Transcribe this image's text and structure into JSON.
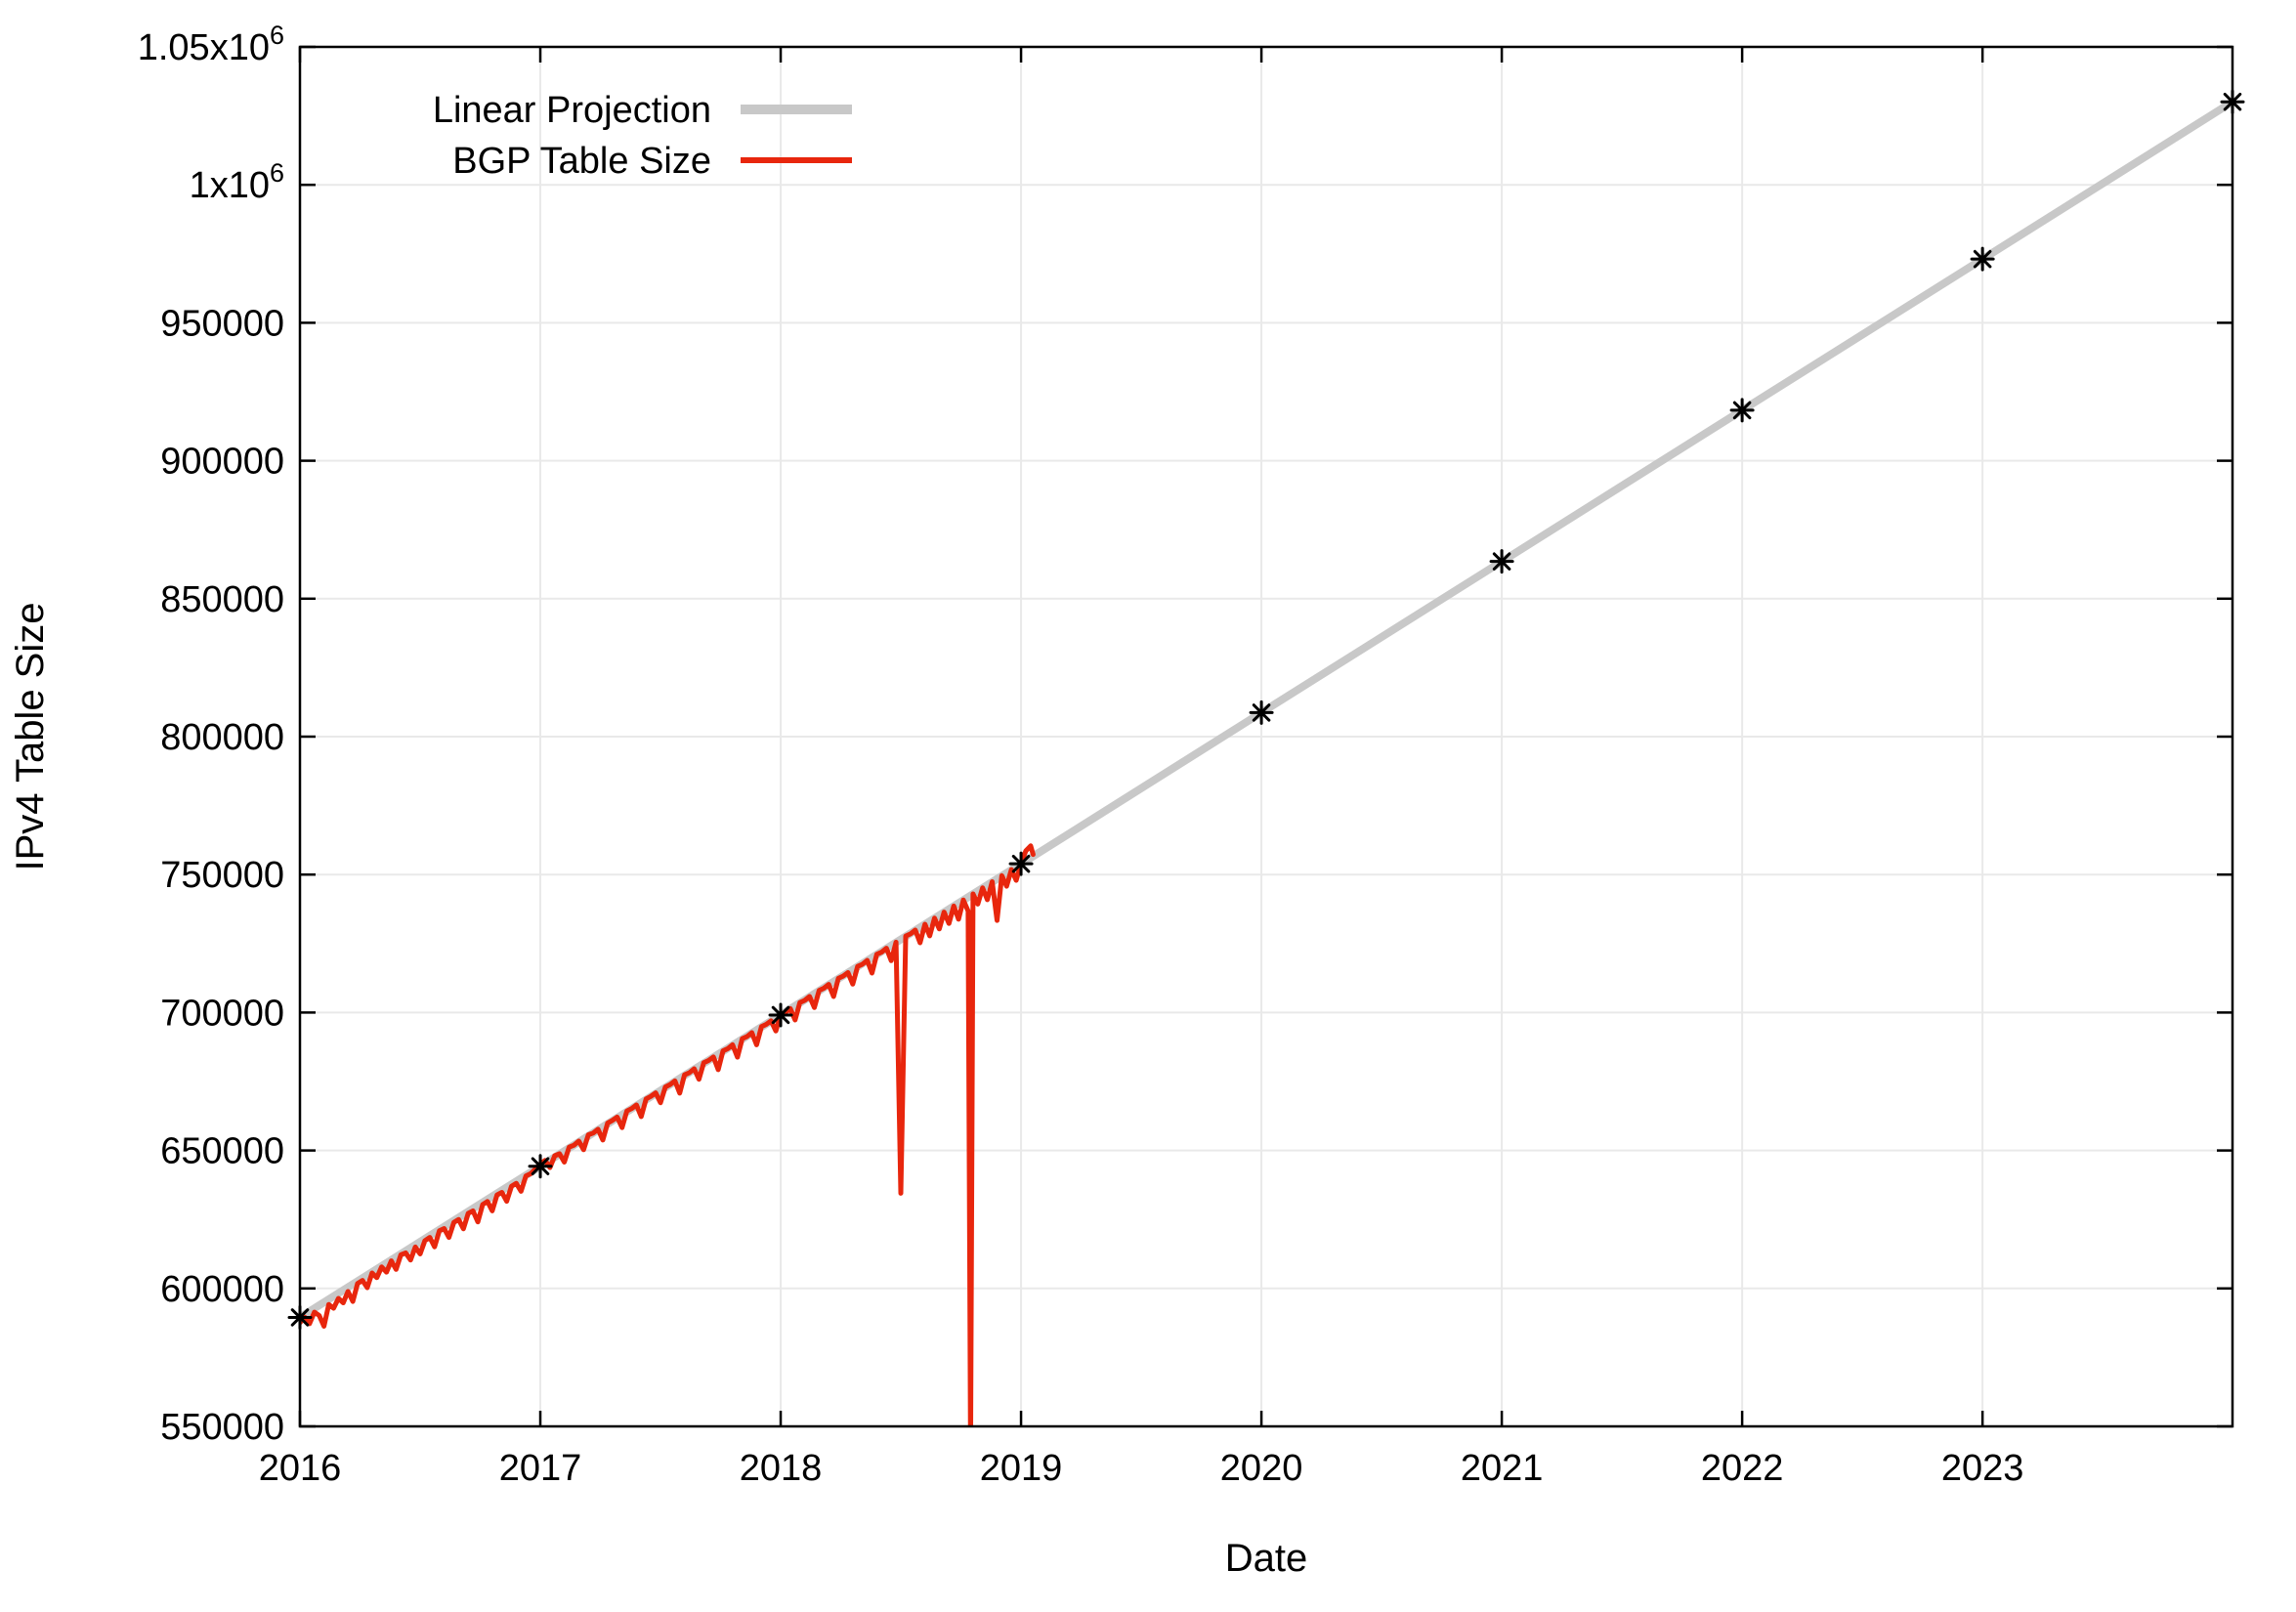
{
  "chart_data": {
    "type": "line",
    "title": "",
    "xlabel": "Date",
    "ylabel": "IPv4 Table Size",
    "xlim": [
      2016,
      2024.04
    ],
    "ylim": [
      550000,
      1050000
    ],
    "grid": true,
    "colors": {
      "projection_line": "#c8c8c8",
      "bgp_line": "#e8260d",
      "marker": "#000000",
      "grid": "#e9e9e9",
      "border": "#000000"
    },
    "xticks": [
      2016,
      2017,
      2018,
      2019,
      2020,
      2021,
      2022,
      2023
    ],
    "xtick_labels": [
      "2016",
      "2017",
      "2018",
      "2019",
      "2020",
      "2021",
      "2022",
      "2023"
    ],
    "yticks": [
      550000,
      600000,
      650000,
      700000,
      750000,
      800000,
      850000,
      900000,
      950000,
      1000000,
      1050000
    ],
    "ytick_labels": [
      "550000",
      "600000",
      "650000",
      "700000",
      "750000",
      "800000",
      "850000",
      "900000",
      "950000",
      "1x10^6",
      "1.05x10^6"
    ],
    "legend": {
      "position": "top-left",
      "entries": [
        {
          "label": "Linear Projection",
          "color": "#c8c8c8",
          "line_width": 10
        },
        {
          "label": "BGP Table Size",
          "color": "#e8260d",
          "line_width": 6
        }
      ]
    },
    "series": [
      {
        "name": "Linear Projection",
        "style": "line_with_asterisk_markers",
        "color": "#c8c8c8",
        "marker_color": "#000000",
        "points": [
          [
            2016,
            589500
          ],
          [
            2017,
            644300
          ],
          [
            2018,
            699100
          ],
          [
            2019,
            753900
          ],
          [
            2020,
            808700
          ],
          [
            2021,
            863500
          ],
          [
            2022,
            918300
          ],
          [
            2023,
            973100
          ],
          [
            2024.04,
            1030100
          ]
        ]
      },
      {
        "name": "BGP Table Size",
        "style": "line",
        "color": "#e8260d",
        "points": [
          [
            2016.0,
            587600
          ],
          [
            2016.02,
            589600
          ],
          [
            2016.04,
            587200
          ],
          [
            2016.06,
            591400
          ],
          [
            2016.08,
            590200
          ],
          [
            2016.1,
            586300
          ],
          [
            2016.12,
            594200
          ],
          [
            2016.14,
            592800
          ],
          [
            2016.16,
            596400
          ],
          [
            2016.18,
            594800
          ],
          [
            2016.2,
            598900
          ],
          [
            2016.22,
            595300
          ],
          [
            2016.24,
            601800
          ],
          [
            2016.26,
            602900
          ],
          [
            2016.28,
            600300
          ],
          [
            2016.3,
            605600
          ],
          [
            2016.32,
            603900
          ],
          [
            2016.34,
            607800
          ],
          [
            2016.36,
            605900
          ],
          [
            2016.38,
            610000
          ],
          [
            2016.4,
            606900
          ],
          [
            2016.42,
            612200
          ],
          [
            2016.44,
            612900
          ],
          [
            2016.46,
            610300
          ],
          [
            2016.48,
            615000
          ],
          [
            2016.5,
            612500
          ],
          [
            2016.52,
            617300
          ],
          [
            2016.54,
            618500
          ],
          [
            2016.56,
            615100
          ],
          [
            2016.58,
            620900
          ],
          [
            2016.6,
            621700
          ],
          [
            2016.62,
            618500
          ],
          [
            2016.64,
            623900
          ],
          [
            2016.66,
            625000
          ],
          [
            2016.68,
            621600
          ],
          [
            2016.7,
            627200
          ],
          [
            2016.72,
            628100
          ],
          [
            2016.74,
            624100
          ],
          [
            2016.76,
            630400
          ],
          [
            2016.78,
            631500
          ],
          [
            2016.8,
            628100
          ],
          [
            2016.82,
            633900
          ],
          [
            2016.84,
            634800
          ],
          [
            2016.86,
            631600
          ],
          [
            2016.88,
            637000
          ],
          [
            2016.9,
            638100
          ],
          [
            2016.92,
            635200
          ],
          [
            2016.94,
            640800
          ],
          [
            2016.96,
            641600
          ],
          [
            2016.98,
            643300
          ],
          [
            2017.0,
            645100
          ],
          [
            2017.02,
            646400
          ],
          [
            2017.04,
            643800
          ],
          [
            2017.06,
            648100
          ],
          [
            2017.08,
            648800
          ],
          [
            2017.1,
            645800
          ],
          [
            2017.12,
            651200
          ],
          [
            2017.14,
            651900
          ],
          [
            2017.16,
            653400
          ],
          [
            2017.18,
            650300
          ],
          [
            2017.2,
            655700
          ],
          [
            2017.22,
            656300
          ],
          [
            2017.24,
            657700
          ],
          [
            2017.26,
            653800
          ],
          [
            2017.28,
            659900
          ],
          [
            2017.3,
            660900
          ],
          [
            2017.32,
            662100
          ],
          [
            2017.34,
            658300
          ],
          [
            2017.36,
            664300
          ],
          [
            2017.38,
            665200
          ],
          [
            2017.4,
            666500
          ],
          [
            2017.42,
            662300
          ],
          [
            2017.44,
            668700
          ],
          [
            2017.46,
            669600
          ],
          [
            2017.48,
            670900
          ],
          [
            2017.5,
            667300
          ],
          [
            2017.52,
            673000
          ],
          [
            2017.54,
            673900
          ],
          [
            2017.56,
            675200
          ],
          [
            2017.58,
            670800
          ],
          [
            2017.6,
            677400
          ],
          [
            2017.62,
            678200
          ],
          [
            2017.64,
            679600
          ],
          [
            2017.66,
            675800
          ],
          [
            2017.68,
            681800
          ],
          [
            2017.7,
            682600
          ],
          [
            2017.72,
            683900
          ],
          [
            2017.74,
            679300
          ],
          [
            2017.76,
            686100
          ],
          [
            2017.78,
            686900
          ],
          [
            2017.8,
            688300
          ],
          [
            2017.82,
            683800
          ],
          [
            2017.84,
            690500
          ],
          [
            2017.86,
            691300
          ],
          [
            2017.88,
            692700
          ],
          [
            2017.9,
            688300
          ],
          [
            2017.92,
            694900
          ],
          [
            2017.94,
            695700
          ],
          [
            2017.96,
            697000
          ],
          [
            2017.98,
            693300
          ],
          [
            2018.0,
            699300
          ],
          [
            2018.02,
            700100
          ],
          [
            2018.04,
            701400
          ],
          [
            2018.06,
            697300
          ],
          [
            2018.08,
            703600
          ],
          [
            2018.1,
            704400
          ],
          [
            2018.12,
            705800
          ],
          [
            2018.14,
            701800
          ],
          [
            2018.16,
            708000
          ],
          [
            2018.18,
            708800
          ],
          [
            2018.2,
            710200
          ],
          [
            2018.22,
            705800
          ],
          [
            2018.24,
            712400
          ],
          [
            2018.26,
            713200
          ],
          [
            2018.28,
            714500
          ],
          [
            2018.3,
            710300
          ],
          [
            2018.32,
            716700
          ],
          [
            2018.34,
            717500
          ],
          [
            2018.36,
            718900
          ],
          [
            2018.38,
            714300
          ],
          [
            2018.4,
            721100
          ],
          [
            2018.42,
            721900
          ],
          [
            2018.44,
            723300
          ],
          [
            2018.46,
            718800
          ],
          [
            2018.48,
            725500
          ],
          [
            2018.5,
            634500
          ],
          [
            2018.52,
            727700
          ],
          [
            2018.54,
            728500
          ],
          [
            2018.56,
            729900
          ],
          [
            2018.58,
            725300
          ],
          [
            2018.6,
            732000
          ],
          [
            2018.62,
            727800
          ],
          [
            2018.64,
            734200
          ],
          [
            2018.66,
            730300
          ],
          [
            2018.68,
            736400
          ],
          [
            2018.7,
            732300
          ],
          [
            2018.72,
            738600
          ],
          [
            2018.74,
            733800
          ],
          [
            2018.76,
            740800
          ],
          [
            2018.78,
            736800
          ],
          [
            2018.79,
            540000
          ],
          [
            2018.8,
            743000
          ],
          [
            2018.82,
            739300
          ],
          [
            2018.84,
            745200
          ],
          [
            2018.86,
            740900
          ],
          [
            2018.88,
            747400
          ],
          [
            2018.9,
            733400
          ],
          [
            2018.92,
            749600
          ],
          [
            2018.94,
            745800
          ],
          [
            2018.96,
            751800
          ],
          [
            2018.98,
            747900
          ],
          [
            2019.0,
            754100
          ],
          [
            2019.02,
            758600
          ],
          [
            2019.04,
            760400
          ],
          [
            2019.05,
            757300
          ]
        ]
      }
    ]
  }
}
